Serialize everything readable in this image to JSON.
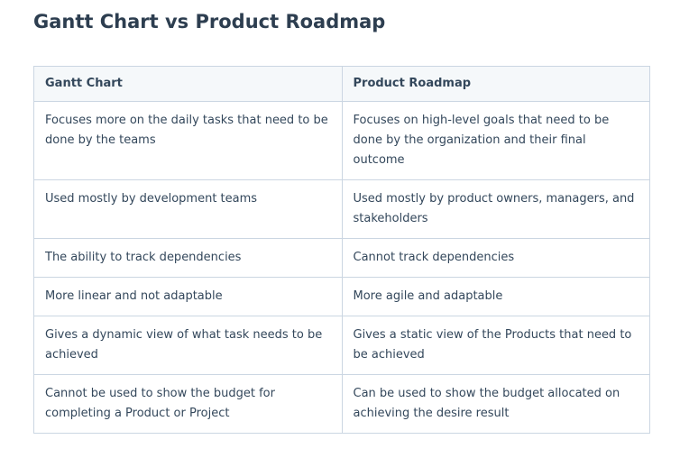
{
  "title": "Gantt Chart vs Product Roadmap",
  "table": {
    "header": [
      "Gantt Chart",
      "Product Roadmap"
    ],
    "rows": [
      [
        "Focuses more on the daily tasks that need to be done by the teams",
        "Focuses on high-level goals that need to be done by the organization and their final outcome"
      ],
      [
        "Used mostly by development teams",
        "Used mostly by product owners, managers, and stakeholders"
      ],
      [
        "The ability to track dependencies",
        "Cannot track dependencies"
      ],
      [
        "More linear and not adaptable",
        "More agile and adaptable"
      ],
      [
        "Gives a dynamic view of what task needs to be achieved",
        "Gives a static view of the Products that need to be achieved"
      ],
      [
        "Cannot be used to show the budget for completing a Product or Project",
        "Can be used to show the budget allocated on achieving the desire result"
      ]
    ]
  }
}
